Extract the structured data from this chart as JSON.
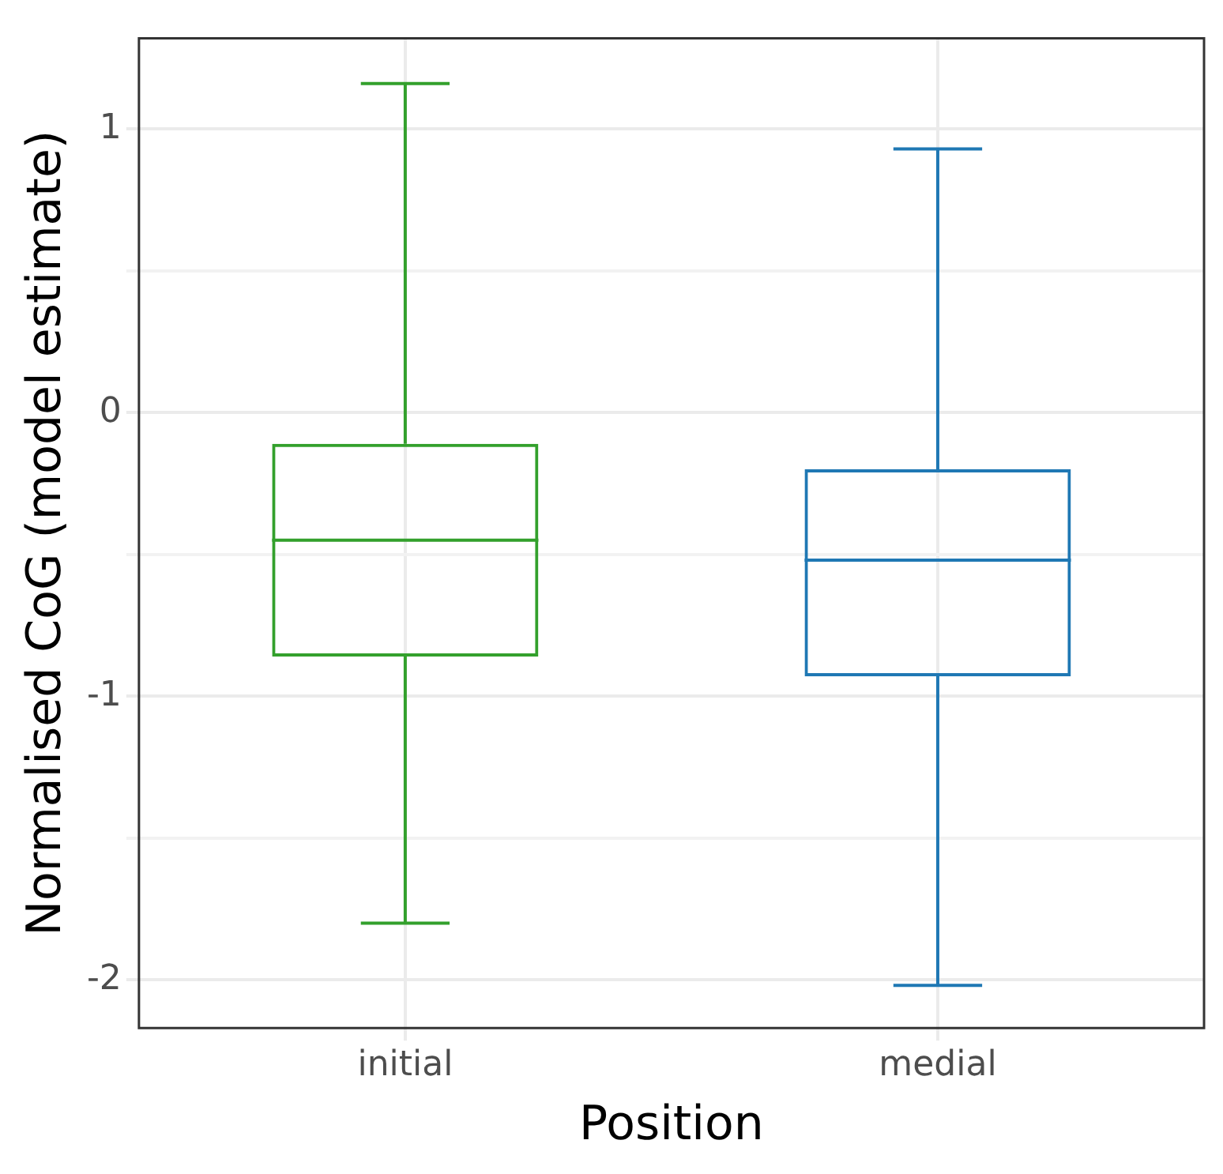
{
  "chart_data": {
    "type": "box",
    "xlabel": "Position",
    "ylabel": "Normalised CoG (model estimate)",
    "categories": [
      "initial",
      "medial"
    ],
    "colors": [
      "#33a02c",
      "#1f78b4"
    ],
    "boxes": [
      {
        "low": -1.8,
        "q1": -0.86,
        "median": -0.45,
        "q3": -0.11,
        "high": 1.16
      },
      {
        "low": -2.02,
        "q1": -0.93,
        "median": -0.52,
        "q3": -0.2,
        "high": 0.93
      }
    ],
    "ylim": [
      -2.17,
      1.32
    ],
    "yticks": [
      -2,
      {
        "value": -1.5,
        "label": null
      },
      -1,
      {
        "value": -0.5,
        "label": null
      },
      0,
      {
        "value": 0.5,
        "label": null
      },
      1
    ],
    "grid": true
  }
}
